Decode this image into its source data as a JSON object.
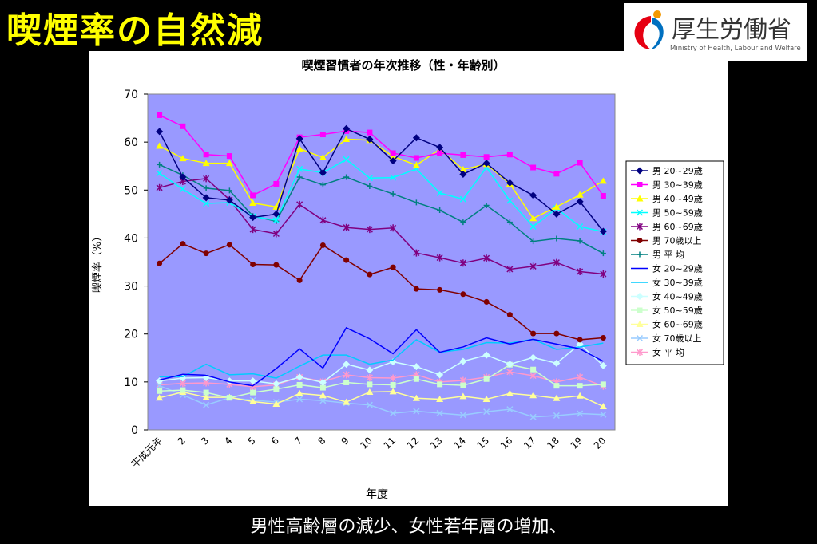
{
  "slide": {
    "title": "喫煙率の自然減",
    "caption": "男性高齢層の減少、女性若年層の増加、"
  },
  "logo": {
    "name": "厚生労働省",
    "subtitle": "Ministry of Health, Labour and Welfare",
    "colors": [
      "#e60012",
      "#0070c0",
      "#f39800"
    ]
  },
  "colors": {
    "background": "#000000",
    "title": "#ffff00",
    "plot_area": "#9999ff"
  },
  "chart_data": {
    "type": "line",
    "title": "喫煙習慣者の年次推移（性・年齢別）",
    "xlabel": "年度",
    "ylabel": "喫煙率（%）",
    "ylim": [
      0,
      70
    ],
    "yticks": [
      0,
      10,
      20,
      30,
      40,
      50,
      60,
      70
    ],
    "categories": [
      "平成元年",
      "2",
      "3",
      "4",
      "5",
      "6",
      "7",
      "8",
      "9",
      "10",
      "11",
      "12",
      "13",
      "14",
      "15",
      "16",
      "17",
      "18",
      "19",
      "20"
    ],
    "grid": false,
    "legend_position": "right",
    "series": [
      {
        "name": "男 20~29歳",
        "color": "#000080",
        "marker": "diamond",
        "values": [
          62.2,
          52.7,
          48.4,
          47.9,
          44.3,
          45.0,
          60.7,
          53.6,
          62.8,
          60.6,
          56.1,
          60.9,
          58.9,
          53.3,
          55.6,
          51.5,
          48.9,
          45.0,
          47.6,
          41.4
        ]
      },
      {
        "name": "男 30~39歳",
        "color": "#ff00ff",
        "marker": "square",
        "values": [
          65.6,
          63.3,
          57.4,
          57.1,
          48.9,
          51.3,
          61.0,
          61.6,
          62.3,
          62.0,
          57.7,
          56.7,
          57.7,
          57.3,
          56.9,
          57.4,
          54.7,
          53.4,
          55.7,
          48.8
        ]
      },
      {
        "name": "男 40~49歳",
        "color": "#ffff00",
        "marker": "triangle",
        "values": [
          59.2,
          56.6,
          55.6,
          55.6,
          47.3,
          46.5,
          58.6,
          56.8,
          60.6,
          60.4,
          57.0,
          55.2,
          58.5,
          54.3,
          55.4,
          51.3,
          44.1,
          46.5,
          49.0,
          51.9
        ]
      },
      {
        "name": "男 50~59歳",
        "color": "#00ffff",
        "marker": "x",
        "values": [
          53.5,
          50.2,
          47.2,
          47.4,
          44.5,
          43.7,
          54.4,
          53.6,
          56.4,
          52.5,
          52.6,
          54.4,
          49.4,
          48.1,
          54.7,
          47.8,
          42.4,
          46.2,
          42.4,
          41.3
        ]
      },
      {
        "name": "男 60~69歳",
        "color": "#800080",
        "marker": "star",
        "values": [
          50.5,
          51.8,
          52.4,
          48.0,
          41.8,
          40.9,
          47.0,
          43.7,
          42.2,
          41.8,
          42.1,
          36.9,
          35.9,
          34.8,
          35.8,
          33.5,
          34.1,
          34.9,
          33.0,
          32.5
        ]
      },
      {
        "name": "男 70歳以上",
        "color": "#800000",
        "marker": "circle",
        "values": [
          34.7,
          38.8,
          36.8,
          38.6,
          34.5,
          34.4,
          31.2,
          38.5,
          35.4,
          32.4,
          33.9,
          29.4,
          29.2,
          28.3,
          26.7,
          24.0,
          20.1,
          20.1,
          18.8,
          19.2
        ]
      },
      {
        "name": "男 平 均",
        "color": "#008080",
        "marker": "plus",
        "values": [
          55.3,
          53.1,
          50.4,
          49.9,
          44.6,
          43.5,
          52.7,
          51.1,
          52.7,
          50.8,
          49.2,
          47.4,
          45.8,
          43.3,
          46.8,
          43.3,
          39.3,
          39.9,
          39.4,
          36.8
        ]
      },
      {
        "name": "女 20~29歳",
        "color": "#0000ff",
        "marker": "line",
        "values": [
          10.4,
          11.6,
          11.4,
          10.0,
          9.2,
          12.8,
          16.9,
          12.9,
          21.3,
          19.0,
          15.9,
          20.9,
          16.2,
          17.3,
          19.2,
          17.9,
          18.9,
          17.9,
          16.9,
          14.3
        ]
      },
      {
        "name": "女 30~39歳",
        "color": "#00ccff",
        "marker": "line",
        "values": [
          11.1,
          11.1,
          13.7,
          11.5,
          11.7,
          10.8,
          13.3,
          15.6,
          15.6,
          13.7,
          14.6,
          18.8,
          16.2,
          16.8,
          18.2,
          18.1,
          18.9,
          16.8,
          17.3,
          18.1
        ]
      },
      {
        "name": "女 40~49歳",
        "color": "#ccffff",
        "marker": "diamond",
        "values": [
          10.2,
          10.8,
          10.9,
          10.2,
          10.2,
          9.6,
          11.0,
          9.9,
          13.7,
          12.5,
          14.2,
          13.2,
          11.5,
          14.3,
          15.6,
          13.7,
          15.1,
          13.9,
          17.9,
          13.4
        ]
      },
      {
        "name": "女 50~59歳",
        "color": "#ccffcc",
        "marker": "square",
        "values": [
          8.1,
          8.3,
          7.8,
          6.7,
          7.8,
          8.5,
          9.4,
          8.8,
          9.9,
          9.5,
          9.4,
          10.6,
          9.5,
          9.3,
          10.6,
          13.6,
          12.6,
          9.2,
          9.2,
          9.5
        ]
      },
      {
        "name": "女 60~69歳",
        "color": "#ffff99",
        "marker": "triangle",
        "values": [
          6.7,
          7.9,
          6.8,
          6.8,
          5.9,
          5.4,
          7.6,
          7.2,
          5.8,
          7.9,
          8.0,
          6.6,
          6.4,
          7.0,
          6.4,
          7.6,
          7.2,
          6.6,
          7.1,
          4.9
        ]
      },
      {
        "name": "女 70歳以上",
        "color": "#99ccff",
        "marker": "x",
        "values": [
          9.2,
          7.3,
          5.2,
          6.7,
          6.2,
          5.8,
          6.4,
          6.1,
          5.6,
          5.2,
          3.5,
          3.9,
          3.5,
          3.1,
          3.8,
          4.3,
          2.7,
          3.0,
          3.4,
          3.2
        ]
      },
      {
        "name": "女 平 均",
        "color": "#ff99cc",
        "marker": "star",
        "values": [
          9.4,
          9.7,
          9.8,
          9.5,
          9.0,
          9.4,
          11.0,
          10.1,
          11.5,
          10.9,
          10.8,
          11.5,
          10.0,
          10.3,
          11.0,
          12.1,
          11.3,
          10.0,
          11.0,
          9.1
        ]
      }
    ]
  }
}
